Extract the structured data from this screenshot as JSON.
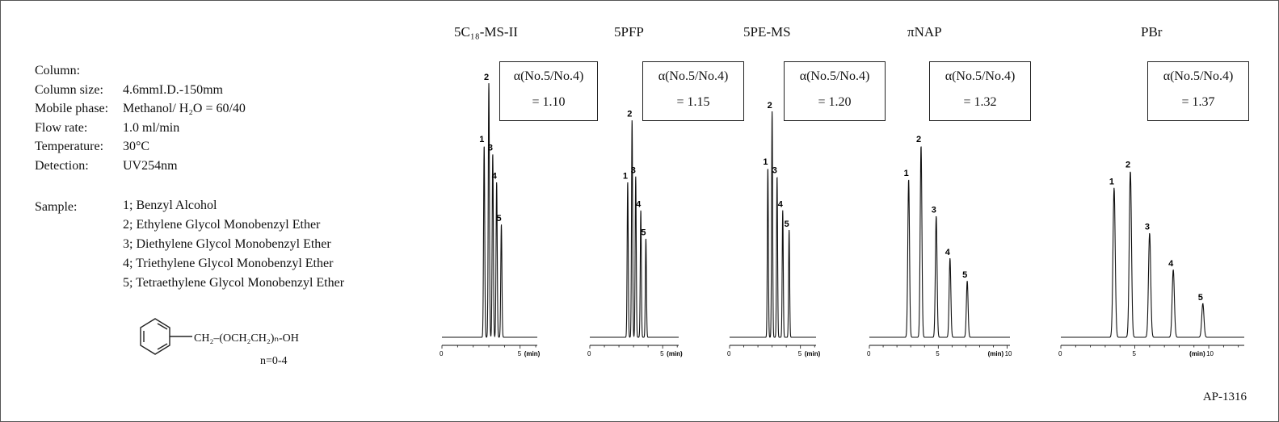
{
  "conditions": [
    {
      "label": "Column:",
      "value": ""
    },
    {
      "label": "Column size:",
      "value": "4.6mmI.D.-150mm"
    },
    {
      "label": "Mobile phase:",
      "value": "Methanol/ H₂O = 60/40"
    },
    {
      "label": "Flow rate:",
      "value": "1.0 ml/min"
    },
    {
      "label": "Temperature:",
      "value": "30°C"
    },
    {
      "label": "Detection:",
      "value": "UV254nm"
    }
  ],
  "sample_label": "Sample:",
  "samples": [
    "1; Benzyl Alcohol",
    "2; Ethylene Glycol Monobenzyl Ether",
    "3; Diethylene Glycol Monobenzyl Ether",
    "4; Triethylene Glycol Monobenzyl Ether",
    "5; Tetraethylene Glycol Monobenzyl Ether"
  ],
  "structure": {
    "formula": "CH₂–(OCH₂CH₂)ₙ-OH",
    "note": "n=0-4"
  },
  "footer": "AP-1316",
  "chart_data": [
    {
      "type": "line",
      "title": "5C₁₈-MS-II",
      "alpha_line1": "α(No.5/No.4)",
      "alpha_line2": "= 1.10",
      "xlabel": "(min)",
      "xlim": [
        0,
        6.1
      ],
      "xticks": [
        0,
        5
      ],
      "peaks": [
        {
          "label": "1",
          "x": 2.7,
          "y": 0.68
        },
        {
          "label": "2",
          "x": 3.0,
          "y": 0.9
        },
        {
          "label": "3",
          "x": 3.25,
          "y": 0.65
        },
        {
          "label": "4",
          "x": 3.5,
          "y": 0.55
        },
        {
          "label": "5",
          "x": 3.8,
          "y": 0.4
        }
      ]
    },
    {
      "type": "line",
      "title": "5PFP",
      "alpha_line1": "α(No.5/No.4)",
      "alpha_line2": "= 1.15",
      "xlabel": "(min)",
      "xlim": [
        0,
        6.1
      ],
      "xticks": [
        0,
        5
      ],
      "peaks": [
        {
          "label": "1",
          "x": 2.6,
          "y": 0.55
        },
        {
          "label": "2",
          "x": 2.9,
          "y": 0.77
        },
        {
          "label": "3",
          "x": 3.15,
          "y": 0.57
        },
        {
          "label": "4",
          "x": 3.5,
          "y": 0.45
        },
        {
          "label": "5",
          "x": 3.85,
          "y": 0.35
        }
      ]
    },
    {
      "type": "line",
      "title": "5PE-MS",
      "alpha_line1": "α(No.5/No.4)",
      "alpha_line2": "= 1.20",
      "xlabel": "(min)",
      "xlim": [
        0,
        6.1
      ],
      "xticks": [
        0,
        5
      ],
      "peaks": [
        {
          "label": "1",
          "x": 2.7,
          "y": 0.6
        },
        {
          "label": "2",
          "x": 3.0,
          "y": 0.8
        },
        {
          "label": "3",
          "x": 3.35,
          "y": 0.57
        },
        {
          "label": "4",
          "x": 3.75,
          "y": 0.45
        },
        {
          "label": "5",
          "x": 4.2,
          "y": 0.38
        }
      ]
    },
    {
      "type": "line",
      "title": "πNAP",
      "alpha_line1": "α(No.5/No.4)",
      "alpha_line2": "= 1.32",
      "xlabel": "(min)",
      "xlim": [
        0,
        10.2
      ],
      "xticks": [
        0,
        5,
        10
      ],
      "peaks": [
        {
          "label": "1",
          "x": 2.85,
          "y": 0.56
        },
        {
          "label": "2",
          "x": 3.75,
          "y": 0.68
        },
        {
          "label": "3",
          "x": 4.85,
          "y": 0.43
        },
        {
          "label": "4",
          "x": 5.85,
          "y": 0.28
        },
        {
          "label": "5",
          "x": 7.1,
          "y": 0.2
        }
      ]
    },
    {
      "type": "line",
      "title": "PBr",
      "alpha_line1": "α(No.5/No.4)",
      "alpha_line2": "= 1.37",
      "xlabel": "(min)",
      "xlim": [
        0,
        12.4
      ],
      "xticks": [
        0,
        5,
        10
      ],
      "peaks": [
        {
          "label": "1",
          "x": 3.6,
          "y": 0.53
        },
        {
          "label": "2",
          "x": 4.7,
          "y": 0.59
        },
        {
          "label": "3",
          "x": 6.0,
          "y": 0.37
        },
        {
          "label": "4",
          "x": 7.6,
          "y": 0.24
        },
        {
          "label": "5",
          "x": 9.6,
          "y": 0.12
        }
      ]
    }
  ]
}
